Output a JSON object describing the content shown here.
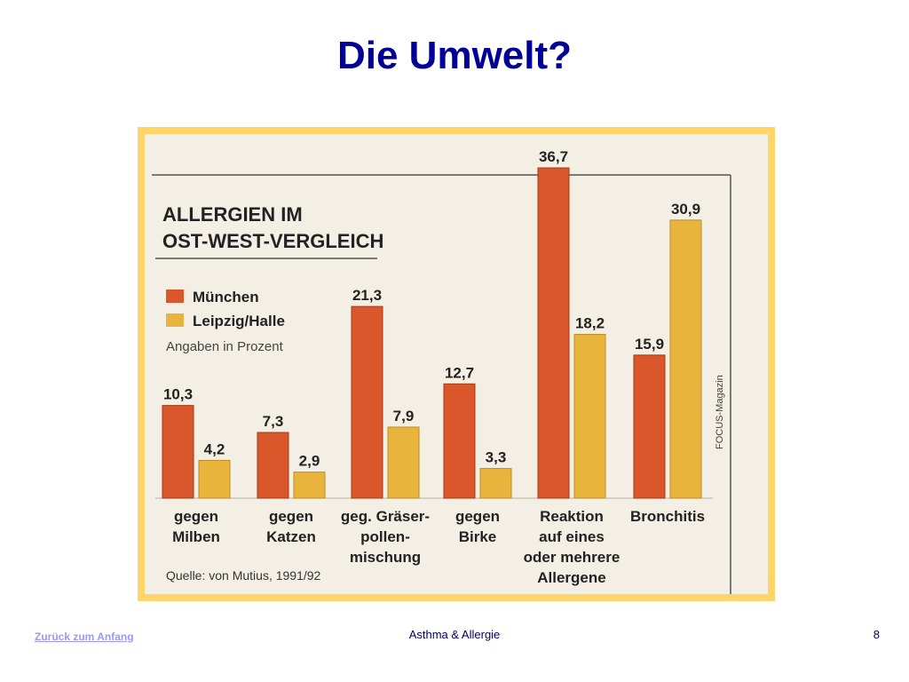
{
  "slide": {
    "title": "Die Umwelt?",
    "footer_link": "Zurück zum Anfang",
    "footer_center": "Asthma & Allergie",
    "page_number": "8"
  },
  "chart_data": {
    "type": "bar",
    "title": "ALLERGIEN IM OST-WEST-VERGLEICH",
    "title_lines": [
      "ALLERGIEN IM",
      "OST-WEST-VERGLEICH"
    ],
    "subtitle": "Angaben in Prozent",
    "source": "Quelle: von Mutius, 1991/92",
    "credit": "FOCUS-Magazin",
    "legend_position": "top-left",
    "categories": [
      [
        "gegen",
        "Milben"
      ],
      [
        "gegen",
        "Katzen"
      ],
      [
        "geg. Gräser-",
        "pollen-",
        "mischung"
      ],
      [
        "gegen",
        "Birke"
      ],
      [
        "Reaktion",
        "auf eines",
        "oder mehrere",
        "Allergene"
      ],
      [
        "Bronchitis"
      ]
    ],
    "series": [
      {
        "name": "München",
        "color": "#d9572a",
        "values": [
          10.3,
          7.3,
          21.3,
          12.7,
          36.7,
          15.9
        ],
        "labels": [
          "10,3",
          "7,3",
          "21,3",
          "12,7",
          "36,7",
          "15,9"
        ]
      },
      {
        "name": "Leipzig/Halle",
        "color": "#e9b43c",
        "values": [
          4.2,
          2.9,
          7.9,
          3.3,
          18.2,
          30.9
        ],
        "labels": [
          "4,2",
          "2,9",
          "7,9",
          "3,3",
          "18,2",
          "30,9"
        ]
      }
    ],
    "ylim": [
      0,
      37
    ]
  }
}
